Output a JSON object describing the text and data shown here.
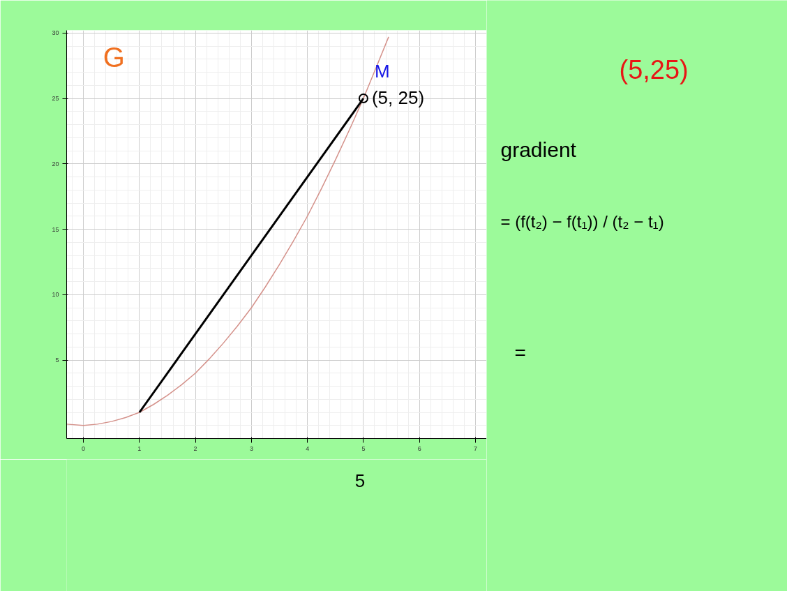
{
  "chart_data": {
    "type": "line",
    "xlim": [
      -0.3,
      7.2
    ],
    "ylim": [
      -1,
      30.2
    ],
    "xticks": [
      0,
      1,
      2,
      3,
      4,
      5,
      6,
      7
    ],
    "yticks": [
      5,
      10,
      15,
      20,
      25,
      30
    ],
    "grid": true,
    "series": [
      {
        "color": "#d4918a",
        "x": [
          -0.3,
          0,
          0.25,
          0.5,
          0.75,
          1,
          1.25,
          1.5,
          1.75,
          2,
          2.25,
          2.5,
          2.75,
          3,
          3.25,
          3.5,
          3.75,
          4,
          4.25,
          4.5,
          4.75,
          5,
          5.25,
          5.45
        ],
        "values": [
          0.1,
          0,
          0.1,
          0.3,
          0.6,
          1,
          1.6,
          2.3,
          3.1,
          4,
          5.1,
          6.3,
          7.6,
          9,
          10.6,
          12.3,
          14.1,
          16,
          18.1,
          20.3,
          22.6,
          25,
          27.6,
          29.7
        ]
      },
      {
        "color": "#000000",
        "x": [
          1,
          5
        ],
        "values": [
          1,
          25
        ]
      },
      {
        "type": "scatter",
        "color": "#000000",
        "marker": "circle",
        "x": [
          5
        ],
        "values": [
          25
        ]
      }
    ],
    "annotations": [
      {
        "text": "(5, 25)",
        "x": 5,
        "y": 25
      },
      "M",
      "G",
      "(5,25)",
      "gradient",
      "= (f(t₂) − f(t₁)) / (t₂ − t₁)",
      "=",
      "5"
    ]
  }
}
